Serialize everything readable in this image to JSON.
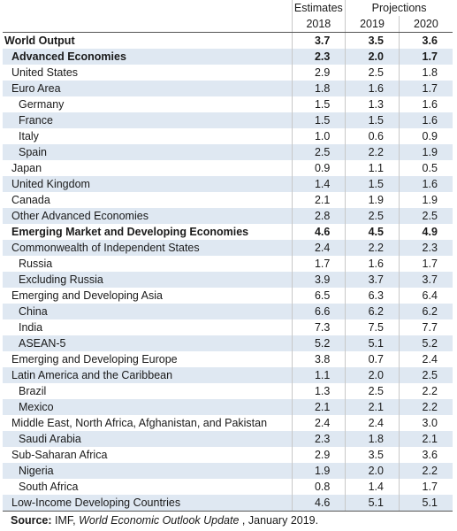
{
  "header": {
    "estimates_label": "Estimates",
    "projections_label": "Projections",
    "years": [
      "2018",
      "2019",
      "2020"
    ]
  },
  "rows": [
    {
      "name": "World Output",
      "level": 0,
      "bold": true,
      "values": [
        "3.7",
        "3.5",
        "3.6"
      ]
    },
    {
      "name": "Advanced Economies",
      "level": 1,
      "bold": true,
      "values": [
        "2.3",
        "2.0",
        "1.7"
      ]
    },
    {
      "name": "United States",
      "level": 1,
      "bold": false,
      "values": [
        "2.9",
        "2.5",
        "1.8"
      ]
    },
    {
      "name": "Euro Area",
      "level": 1,
      "bold": false,
      "values": [
        "1.8",
        "1.6",
        "1.7"
      ]
    },
    {
      "name": "Germany",
      "level": 2,
      "bold": false,
      "values": [
        "1.5",
        "1.3",
        "1.6"
      ]
    },
    {
      "name": "France",
      "level": 2,
      "bold": false,
      "values": [
        "1.5",
        "1.5",
        "1.6"
      ]
    },
    {
      "name": "Italy",
      "level": 2,
      "bold": false,
      "values": [
        "1.0",
        "0.6",
        "0.9"
      ]
    },
    {
      "name": "Spain",
      "level": 2,
      "bold": false,
      "values": [
        "2.5",
        "2.2",
        "1.9"
      ]
    },
    {
      "name": "Japan",
      "level": 1,
      "bold": false,
      "values": [
        "0.9",
        "1.1",
        "0.5"
      ]
    },
    {
      "name": "United Kingdom",
      "level": 1,
      "bold": false,
      "values": [
        "1.4",
        "1.5",
        "1.6"
      ]
    },
    {
      "name": "Canada",
      "level": 1,
      "bold": false,
      "values": [
        "2.1",
        "1.9",
        "1.9"
      ]
    },
    {
      "name": "Other Advanced Economies",
      "level": 1,
      "bold": false,
      "values": [
        "2.8",
        "2.5",
        "2.5"
      ]
    },
    {
      "name": "Emerging Market and Developing Economies",
      "level": 1,
      "bold": true,
      "values": [
        "4.6",
        "4.5",
        "4.9"
      ]
    },
    {
      "name": "Commonwealth of Independent States",
      "level": 1,
      "bold": false,
      "values": [
        "2.4",
        "2.2",
        "2.3"
      ]
    },
    {
      "name": "Russia",
      "level": 2,
      "bold": false,
      "values": [
        "1.7",
        "1.6",
        "1.7"
      ]
    },
    {
      "name": "Excluding Russia",
      "level": 2,
      "bold": false,
      "values": [
        "3.9",
        "3.7",
        "3.7"
      ]
    },
    {
      "name": "Emerging and Developing Asia",
      "level": 1,
      "bold": false,
      "values": [
        "6.5",
        "6.3",
        "6.4"
      ]
    },
    {
      "name": "China",
      "level": 2,
      "bold": false,
      "values": [
        "6.6",
        "6.2",
        "6.2"
      ]
    },
    {
      "name": "India",
      "level": 2,
      "bold": false,
      "values": [
        "7.3",
        "7.5",
        "7.7"
      ]
    },
    {
      "name": "ASEAN-5",
      "level": 2,
      "bold": false,
      "values": [
        "5.2",
        "5.1",
        "5.2"
      ]
    },
    {
      "name": "Emerging and Developing Europe",
      "level": 1,
      "bold": false,
      "values": [
        "3.8",
        "0.7",
        "2.4"
      ]
    },
    {
      "name": "Latin America and the Caribbean",
      "level": 1,
      "bold": false,
      "values": [
        "1.1",
        "2.0",
        "2.5"
      ]
    },
    {
      "name": "Brazil",
      "level": 2,
      "bold": false,
      "values": [
        "1.3",
        "2.5",
        "2.2"
      ]
    },
    {
      "name": "Mexico",
      "level": 2,
      "bold": false,
      "values": [
        "2.1",
        "2.1",
        "2.2"
      ]
    },
    {
      "name": "Middle East, North Africa, Afghanistan, and Pakistan",
      "level": 1,
      "bold": false,
      "values": [
        "2.4",
        "2.4",
        "3.0"
      ]
    },
    {
      "name": "Saudi Arabia",
      "level": 2,
      "bold": false,
      "values": [
        "2.3",
        "1.8",
        "2.1"
      ]
    },
    {
      "name": "Sub-Saharan Africa",
      "level": 1,
      "bold": false,
      "values": [
        "2.9",
        "3.5",
        "3.6"
      ]
    },
    {
      "name": "Nigeria",
      "level": 2,
      "bold": false,
      "values": [
        "1.9",
        "2.0",
        "2.2"
      ]
    },
    {
      "name": "South Africa",
      "level": 2,
      "bold": false,
      "values": [
        "0.8",
        "1.4",
        "1.7"
      ]
    },
    {
      "name": "Low-Income Developing Countries",
      "level": 1,
      "bold": false,
      "values": [
        "4.6",
        "5.1",
        "5.1"
      ]
    }
  ],
  "source": {
    "label": "Source:",
    "prefix": " IMF, ",
    "publication": "World Economic Outlook Update",
    "suffix": " , January 2019."
  }
}
